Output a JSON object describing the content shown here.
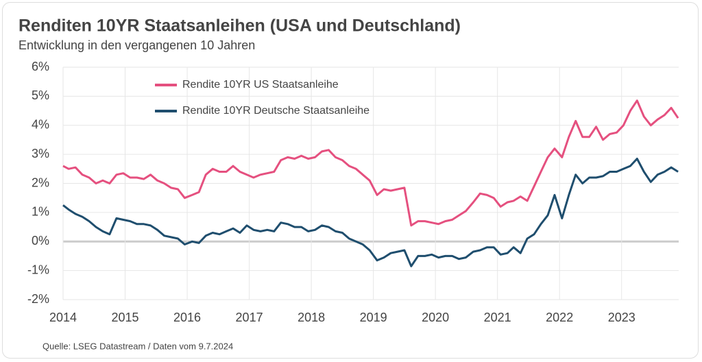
{
  "chart_data": {
    "type": "line",
    "title": "Renditen 10YR Staatsanleihen (USA und Deutschland)",
    "subtitle": "Entwicklung in den vergangenen 10 Jahren",
    "source": "Quelle: LSEG Datastream / Daten vom 9.7.2024",
    "x": [
      2014.0,
      2014.09,
      2014.2,
      2014.31,
      2014.42,
      2014.53,
      2014.64,
      2014.75,
      2014.86,
      2014.97,
      2015.08,
      2015.19,
      2015.3,
      2015.41,
      2015.52,
      2015.63,
      2015.74,
      2015.85,
      2015.96,
      2016.08,
      2016.19,
      2016.3,
      2016.41,
      2016.52,
      2016.63,
      2016.74,
      2016.85,
      2016.96,
      2017.07,
      2017.18,
      2017.29,
      2017.4,
      2017.51,
      2017.62,
      2017.73,
      2017.84,
      2017.95,
      2018.06,
      2018.17,
      2018.28,
      2018.39,
      2018.5,
      2018.61,
      2018.72,
      2018.83,
      2018.94,
      2019.06,
      2019.17,
      2019.28,
      2019.39,
      2019.5,
      2019.61,
      2019.72,
      2019.83,
      2019.94,
      2020.05,
      2020.16,
      2020.27,
      2020.38,
      2020.49,
      2020.61,
      2020.72,
      2020.83,
      2020.94,
      2021.05,
      2021.16,
      2021.26,
      2021.37,
      2021.48,
      2021.59,
      2021.7,
      2021.81,
      2021.92,
      2022.04,
      2022.15,
      2022.26,
      2022.37,
      2022.48,
      2022.59,
      2022.7,
      2022.81,
      2022.92,
      2023.03,
      2023.14,
      2023.25,
      2023.36,
      2023.47,
      2023.58,
      2023.69,
      2023.8,
      2023.91
    ],
    "series": [
      {
        "name": "Rendite 10YR US Staatsanleihe",
        "color": "#e5507f",
        "values": [
          2.6,
          2.5,
          2.55,
          2.3,
          2.2,
          2.0,
          2.1,
          2.0,
          2.3,
          2.35,
          2.2,
          2.2,
          2.15,
          2.3,
          2.1,
          2.0,
          1.85,
          1.8,
          1.5,
          1.6,
          1.7,
          2.3,
          2.5,
          2.4,
          2.4,
          2.6,
          2.4,
          2.3,
          2.2,
          2.3,
          2.35,
          2.4,
          2.8,
          2.9,
          2.85,
          2.95,
          2.85,
          2.9,
          3.1,
          3.15,
          2.9,
          2.8,
          2.6,
          2.5,
          2.3,
          2.1,
          1.6,
          1.8,
          1.75,
          1.8,
          1.85,
          0.55,
          0.7,
          0.7,
          0.65,
          0.6,
          0.7,
          0.75,
          0.9,
          1.05,
          1.35,
          1.65,
          1.6,
          1.5,
          1.2,
          1.35,
          1.4,
          1.55,
          1.4,
          1.9,
          2.4,
          2.9,
          3.2,
          2.9,
          3.6,
          4.15,
          3.6,
          3.6,
          3.95,
          3.5,
          3.7,
          3.75,
          4.0,
          4.5,
          4.85,
          4.3,
          4.0,
          4.2,
          4.35,
          4.6,
          4.25
        ]
      },
      {
        "name": "Rendite 10YR Deutsche Staatsanleihe",
        "color": "#1f4e6e",
        "values": [
          1.25,
          1.1,
          0.95,
          0.85,
          0.7,
          0.5,
          0.35,
          0.25,
          0.8,
          0.75,
          0.7,
          0.6,
          0.6,
          0.55,
          0.4,
          0.2,
          0.15,
          0.1,
          -0.1,
          0.0,
          -0.05,
          0.2,
          0.3,
          0.25,
          0.35,
          0.45,
          0.3,
          0.55,
          0.4,
          0.35,
          0.4,
          0.35,
          0.65,
          0.6,
          0.5,
          0.5,
          0.35,
          0.4,
          0.55,
          0.5,
          0.35,
          0.3,
          0.1,
          0.0,
          -0.1,
          -0.3,
          -0.65,
          -0.55,
          -0.4,
          -0.35,
          -0.3,
          -0.85,
          -0.5,
          -0.5,
          -0.45,
          -0.55,
          -0.5,
          -0.5,
          -0.6,
          -0.55,
          -0.35,
          -0.3,
          -0.2,
          -0.2,
          -0.45,
          -0.4,
          -0.2,
          -0.4,
          0.1,
          0.25,
          0.6,
          0.9,
          1.6,
          0.8,
          1.6,
          2.3,
          2.0,
          2.2,
          2.2,
          2.25,
          2.4,
          2.4,
          2.5,
          2.6,
          2.85,
          2.4,
          2.05,
          2.3,
          2.4,
          2.55,
          2.4
        ]
      }
    ],
    "xlim": [
      2014,
      2023.92
    ],
    "xticks": [
      2014,
      2015,
      2016,
      2017,
      2018,
      2019,
      2020,
      2021,
      2022,
      2023
    ],
    "ylim": [
      -2,
      6
    ],
    "yticks": [
      {
        "value": -2,
        "label": "-2%"
      },
      {
        "value": -1,
        "label": "-1%"
      },
      {
        "value": 0,
        "label": "0%"
      },
      {
        "value": 1,
        "label": "1%"
      },
      {
        "value": 2,
        "label": "2%"
      },
      {
        "value": 3,
        "label": "3%"
      },
      {
        "value": 4,
        "label": "4%"
      },
      {
        "value": 5,
        "label": "5%"
      },
      {
        "value": 6,
        "label": "6%"
      }
    ],
    "grid": true
  }
}
